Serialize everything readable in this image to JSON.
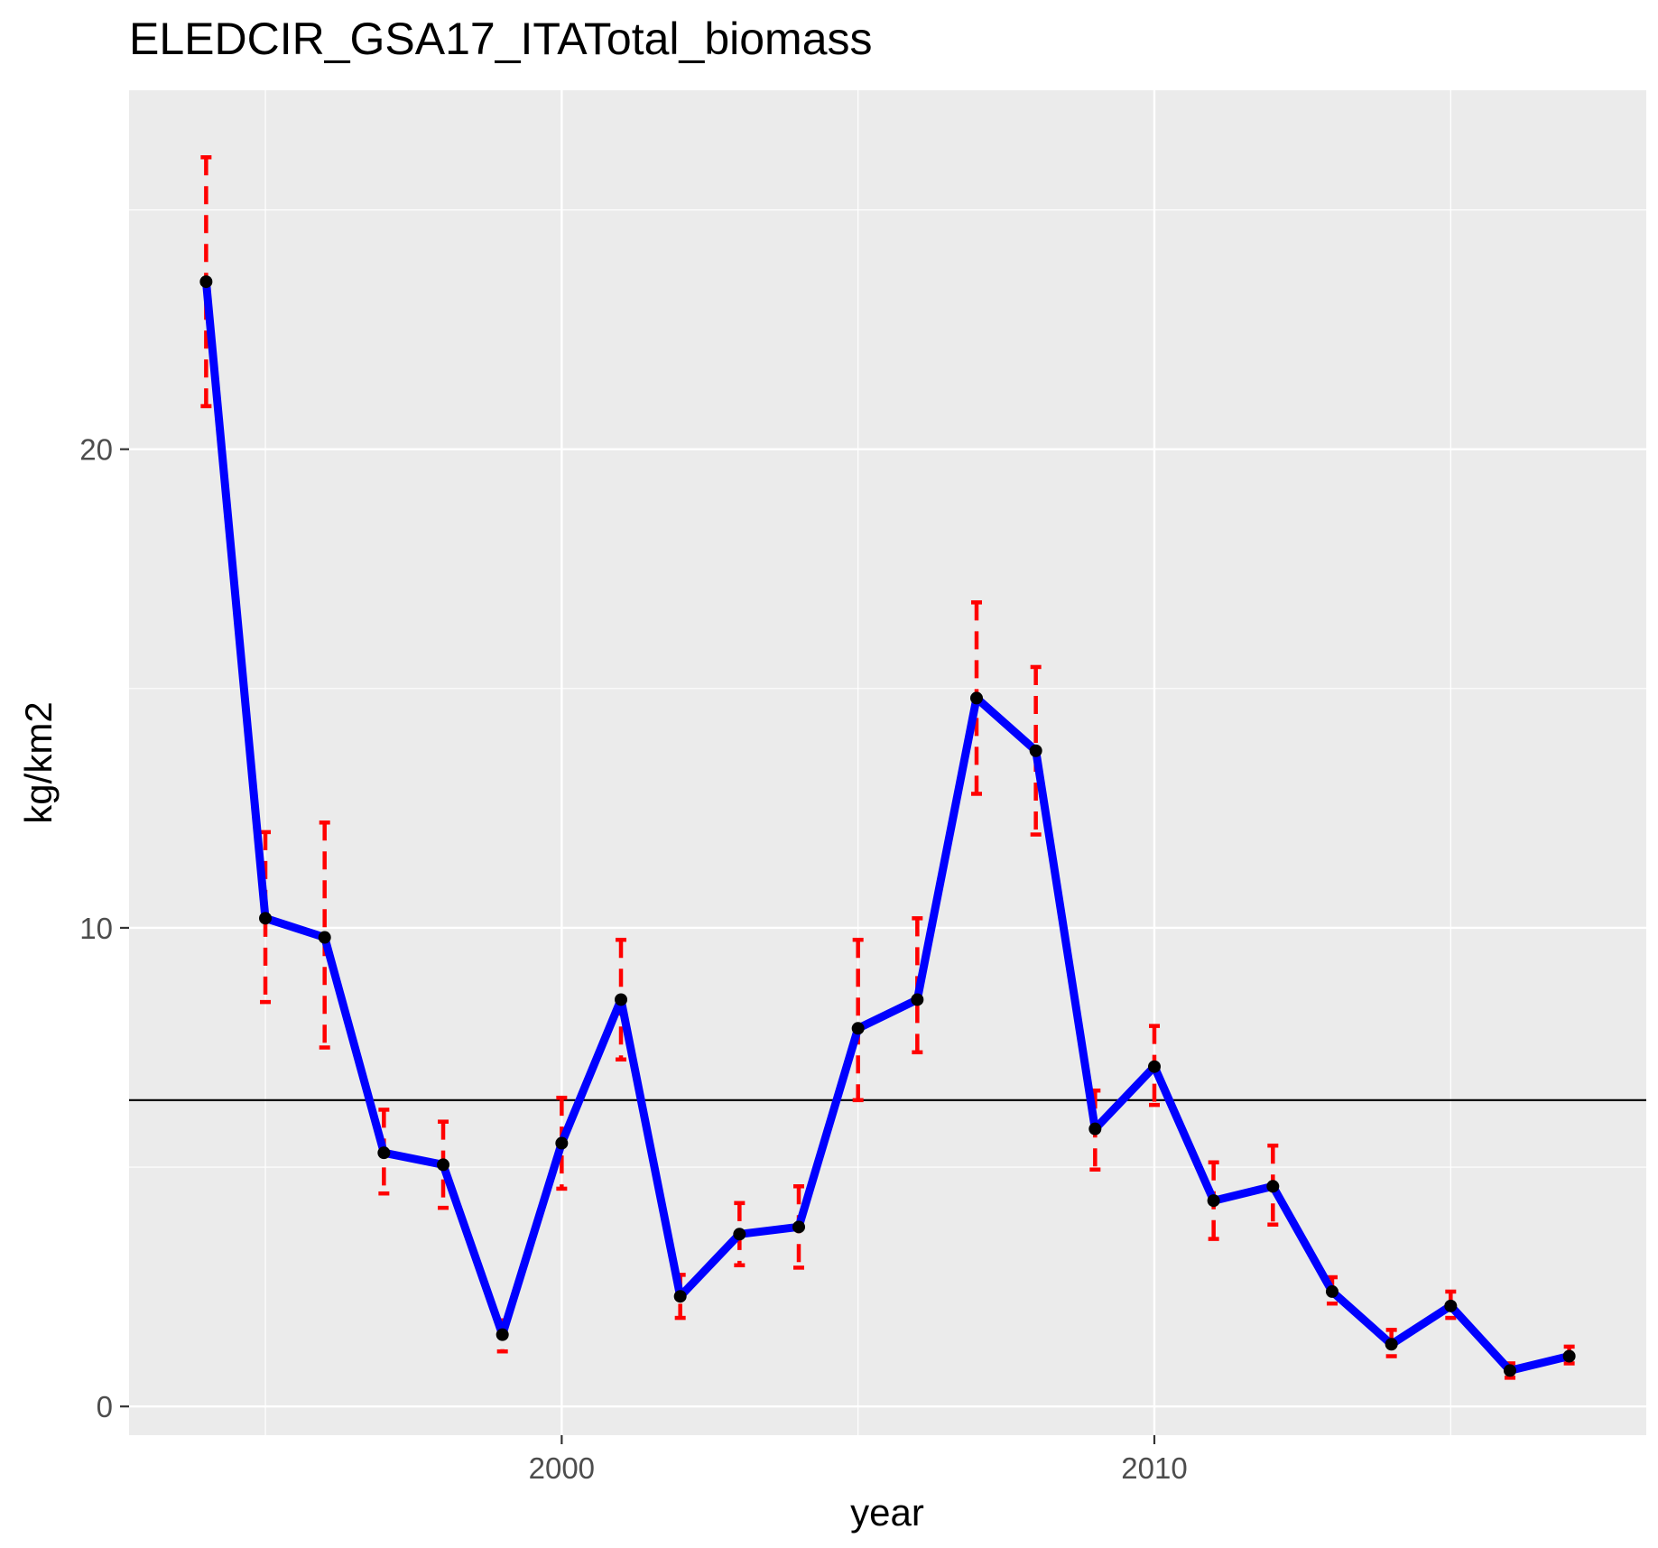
{
  "chart_data": {
    "type": "line",
    "title": "ELEDCIR_GSA17_ITATotal_biomass",
    "xlabel": "year",
    "ylabel": "kg/km2",
    "xlim": [
      1992.7,
      2018.3
    ],
    "ylim": [
      -0.6,
      27.5
    ],
    "x_ticks": [
      2000,
      2010
    ],
    "x_minor_ticks": [
      1995,
      2005,
      2015
    ],
    "y_ticks": [
      0,
      10,
      20
    ],
    "y_minor_ticks": [
      5,
      15,
      25
    ],
    "reference_line": 6.4,
    "series": [
      {
        "name": "Total biomass",
        "color": "#0000ff",
        "x": [
          1994,
          1995,
          1996,
          1997,
          1998,
          1999,
          2000,
          2001,
          2002,
          2003,
          2004,
          2005,
          2006,
          2007,
          2008,
          2009,
          2010,
          2011,
          2012,
          2013,
          2014,
          2015,
          2016,
          2017
        ],
        "values": [
          23.5,
          10.2,
          9.8,
          5.3,
          5.05,
          1.5,
          5.5,
          8.5,
          2.3,
          3.6,
          3.75,
          7.9,
          8.5,
          14.8,
          13.7,
          5.8,
          7.1,
          4.3,
          4.6,
          2.4,
          1.3,
          2.1,
          0.75,
          1.05
        ],
        "lower": [
          20.9,
          8.45,
          7.5,
          4.45,
          4.15,
          1.15,
          4.55,
          7.25,
          1.85,
          2.95,
          2.9,
          6.4,
          7.4,
          12.8,
          11.95,
          4.95,
          6.3,
          3.5,
          3.8,
          2.15,
          1.05,
          1.85,
          0.6,
          0.9
        ],
        "upper": [
          26.1,
          12.0,
          12.2,
          6.2,
          5.95,
          1.8,
          6.45,
          9.75,
          2.75,
          4.25,
          4.6,
          9.75,
          10.2,
          16.8,
          15.45,
          6.6,
          7.95,
          5.1,
          5.45,
          2.7,
          1.6,
          2.4,
          0.9,
          1.25
        ],
        "error_color": "#ff0000",
        "point_color": "#000000"
      }
    ],
    "panel_background": "#ebebeb",
    "grid_color": "#ffffff"
  }
}
